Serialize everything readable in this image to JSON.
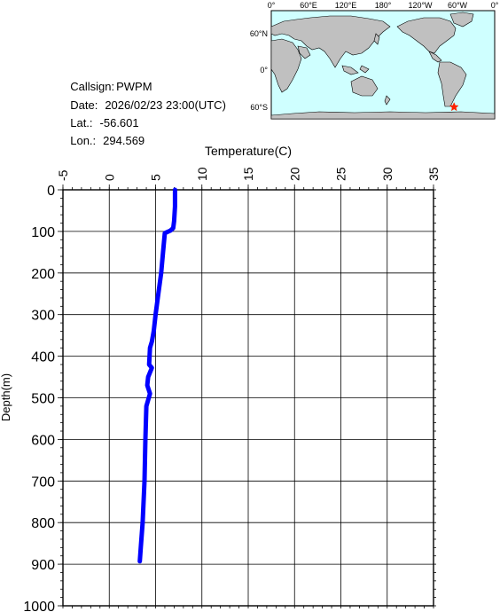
{
  "info": {
    "callsign_label": "Callsign:",
    "callsign": "PWPM",
    "date_label": "Date:",
    "date": "2026/02/23 23:00(UTC)",
    "lat_label": "Lat.:",
    "lat": "-56.601",
    "lon_label": "Lon.:",
    "lon": "294.569"
  },
  "map": {
    "top_labels": [
      "0°",
      "60°E",
      "120°E",
      "180°",
      "120°W",
      "60°W",
      "0°"
    ],
    "left_labels": [
      "60°N",
      "0°",
      "60°S"
    ],
    "marker": "red-star",
    "ocean_color": "#cfffff",
    "land_color": "#c0c0c0"
  },
  "chart_data": {
    "type": "line",
    "xlabel": "Temperature(C)",
    "ylabel": "Depth(m)",
    "xlim": [
      -5,
      35
    ],
    "ylim": [
      0,
      1000
    ],
    "y_inverted": true,
    "x_ticks": [
      "-5",
      "0",
      "5",
      "10",
      "15",
      "20",
      "25",
      "30",
      "35"
    ],
    "y_ticks": [
      "0",
      "100",
      "200",
      "300",
      "400",
      "500",
      "600",
      "700",
      "800",
      "900",
      "1000"
    ],
    "grid": true,
    "series": [
      {
        "color": "#0000ff",
        "x": [
          7.1,
          7.1,
          7.0,
          6.9,
          6.6,
          6.0,
          5.8,
          5.6,
          5.3,
          5.0,
          4.8,
          4.6,
          4.4,
          4.3,
          4.6,
          4.2,
          4.1,
          4.4,
          4.0,
          3.9,
          3.8,
          3.6,
          3.4,
          3.3
        ],
        "y": [
          0,
          40,
          75,
          92,
          98,
          104,
          150,
          200,
          250,
          300,
          340,
          365,
          380,
          420,
          428,
          450,
          470,
          490,
          520,
          600,
          700,
          800,
          860,
          893
        ]
      }
    ]
  }
}
